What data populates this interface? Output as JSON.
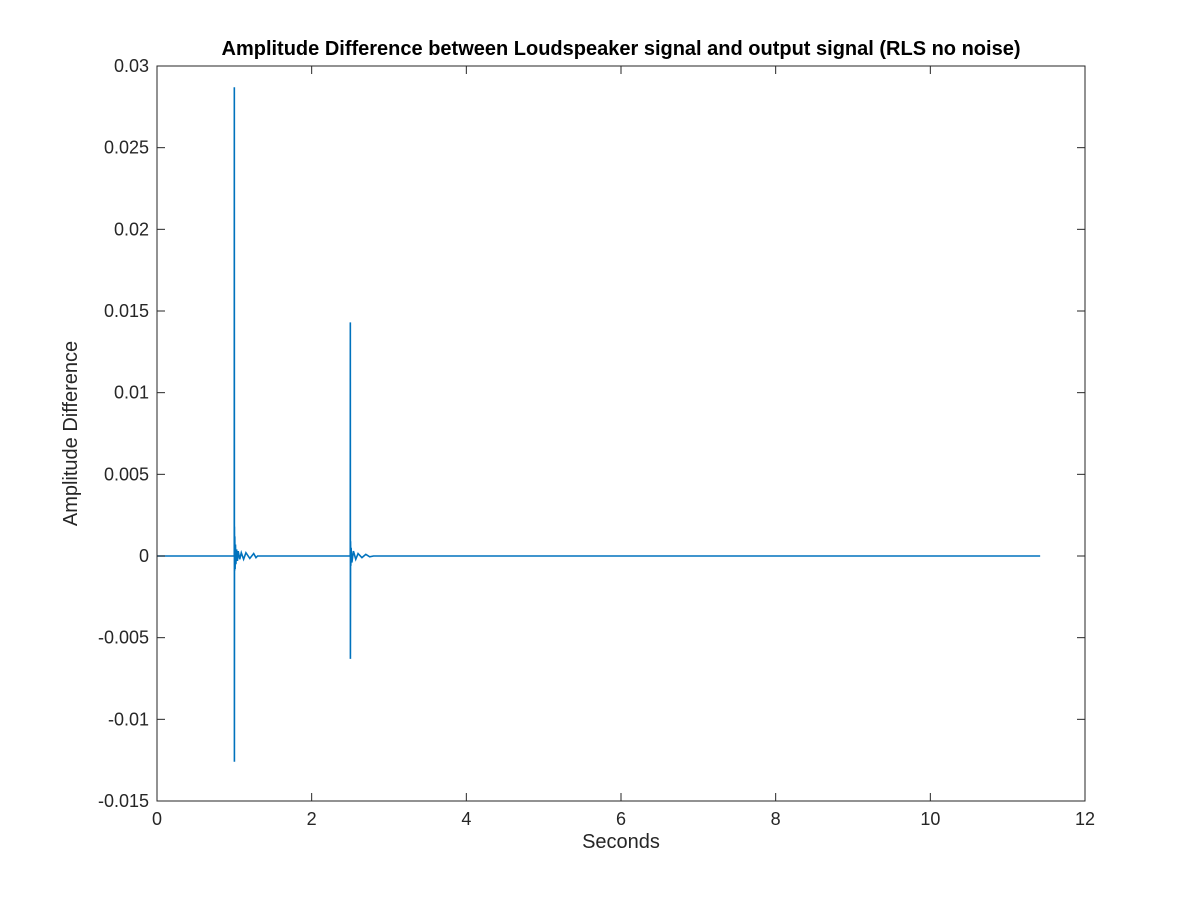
{
  "chart_data": {
    "type": "line",
    "title": "Amplitude Difference between Loudspeaker signal and output signal (RLS no noise)",
    "xlabel": "Seconds",
    "ylabel": "Amplitude Difference",
    "xlim": [
      0,
      12
    ],
    "ylim": [
      -0.015,
      0.03
    ],
    "xticks": [
      0,
      2,
      4,
      6,
      8,
      10,
      12
    ],
    "xtick_labels": [
      "0",
      "2",
      "4",
      "6",
      "8",
      "10",
      "12"
    ],
    "yticks": [
      -0.015,
      -0.01,
      -0.005,
      0,
      0.005,
      0.01,
      0.015,
      0.02,
      0.025,
      0.03
    ],
    "ytick_labels": [
      "-0.015",
      "-0.01",
      "-0.005",
      "0",
      "0.005",
      "0.01",
      "0.015",
      "0.02",
      "0.025",
      "0.03"
    ],
    "grid": false,
    "box": true,
    "colors": {
      "line": "#0072BD",
      "axes": "#262626",
      "background": "#ffffff"
    },
    "series": [
      {
        "x": [
          0,
          0.999,
          1.0,
          1.001,
          1.002,
          1.004,
          1.006,
          1.01,
          1.015,
          1.02,
          1.03,
          1.04,
          1.05,
          1.07,
          1.09,
          1.12,
          1.15,
          1.2,
          1.25,
          1.28,
          1.3,
          2.499,
          2.5,
          2.501,
          2.503,
          2.506,
          2.51,
          2.52,
          2.54,
          2.57,
          2.6,
          2.65,
          2.7,
          2.75,
          2.8,
          11.42
        ],
        "y": [
          0,
          0,
          0.0287,
          -0.0126,
          0.0018,
          -0.0009,
          0.0012,
          -0.0008,
          0.0007,
          -0.0005,
          0.0004,
          -0.0003,
          0.0003,
          -0.0002,
          0.0002,
          -0.0002,
          0.0002,
          -0.00015,
          0.00015,
          -0.0001,
          0,
          0,
          0.0143,
          -0.0063,
          0.0009,
          -0.0006,
          0.0005,
          -0.0004,
          0.0003,
          -0.0002,
          0.00015,
          -0.0001,
          0.0001,
          -5e-05,
          0,
          0
        ]
      }
    ]
  }
}
